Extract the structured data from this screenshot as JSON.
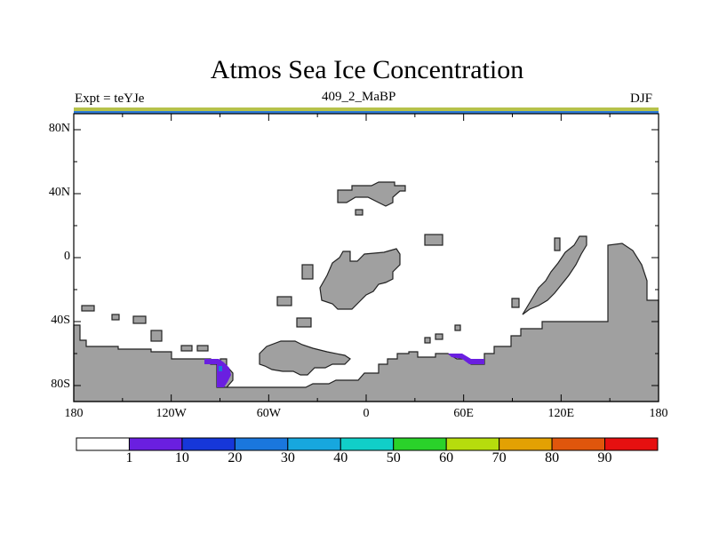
{
  "title": "Atmos Sea Ice Concentration",
  "expt_label": "Expt = teYJe",
  "subtitle": "409_2_MaBP",
  "season": "DJF",
  "y_axis": {
    "labels": [
      "80N",
      "40N",
      "0",
      "40S",
      "80S"
    ],
    "values": [
      80,
      40,
      0,
      -40,
      -80
    ]
  },
  "x_axis": {
    "labels": [
      "180",
      "120W",
      "60W",
      "0",
      "60E",
      "120E",
      "180"
    ],
    "values": [
      -180,
      -120,
      -60,
      0,
      60,
      120,
      180
    ]
  },
  "colorbar": {
    "colors": [
      "#ffffff",
      "#6a1fe0",
      "#1637d9",
      "#1a77dd",
      "#17a7de",
      "#11cfc8",
      "#2ad22a",
      "#b6dc0d",
      "#e3a103",
      "#e0560c",
      "#e61010"
    ],
    "labels": [
      "1",
      "10",
      "20",
      "30",
      "40",
      "50",
      "60",
      "70",
      "80",
      "90"
    ]
  },
  "colors": {
    "land": "#a0a0a0",
    "ice_low": "#6a1fe0",
    "ice_mid": "#1a77dd",
    "polar_strip_top": "#b6c24a",
    "polar_strip_bottom": "#2e7bd8"
  }
}
